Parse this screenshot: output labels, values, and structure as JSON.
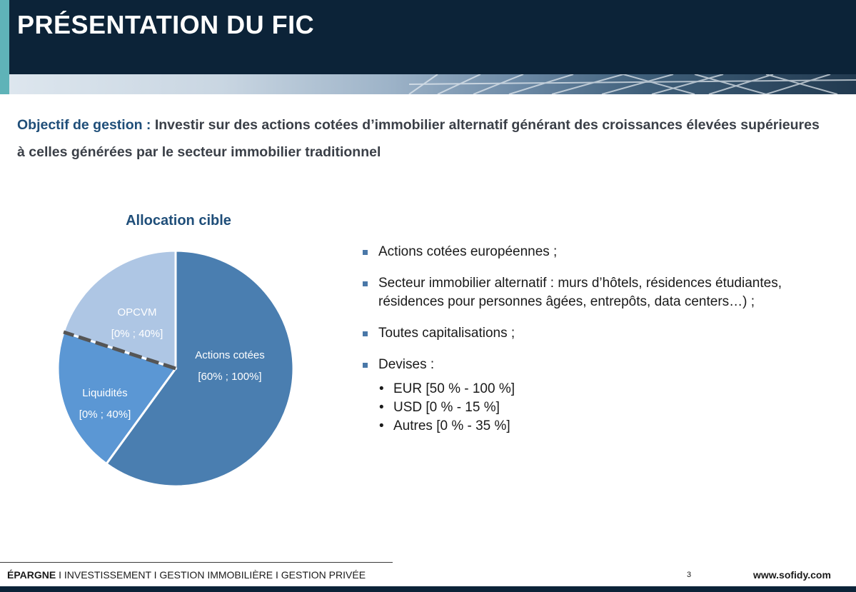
{
  "header": {
    "title": "PRÉSENTATION DU FIC"
  },
  "objective": {
    "label": "Objectif de gestion :",
    "text": " Investir sur des actions cotées d’immobilier alternatif générant des croissances élevées supérieures à celles générées par le secteur immobilier traditionnel"
  },
  "chart_data": {
    "type": "pie",
    "title": "Allocation cible",
    "slices": [
      {
        "name": "Actions cotées",
        "range": "[60% ; 100%]",
        "value": 60,
        "color": "#4a7eb0"
      },
      {
        "name": "Liquidités",
        "range": "[0% ; 40%]",
        "value": 20,
        "color": "#5b97d4"
      },
      {
        "name": "OPCVM",
        "range": "[0% ; 40%]",
        "value": 20,
        "color": "#aec6e4"
      }
    ]
  },
  "bullets": [
    {
      "text": "Actions cotées européennes ;"
    },
    {
      "text": "Secteur immobilier alternatif : murs d’hôtels, résidences étudiantes, résidences pour personnes âgées, entrepôts, data centers…) ;"
    },
    {
      "text": "Toutes capitalisations ;"
    },
    {
      "text": "Devises :",
      "sub": [
        "EUR [50 % - 100 %]",
        "USD [0 % - 15 %]",
        "Autres [0 % - 35 %]"
      ]
    }
  ],
  "footer": {
    "first": "ÉPARGNE",
    "rest": " I INVESTISSEMENT I GESTION IMMOBILIÈRE I GESTION PRIVÉE",
    "page": "3",
    "site": "www.sofidy.com"
  }
}
